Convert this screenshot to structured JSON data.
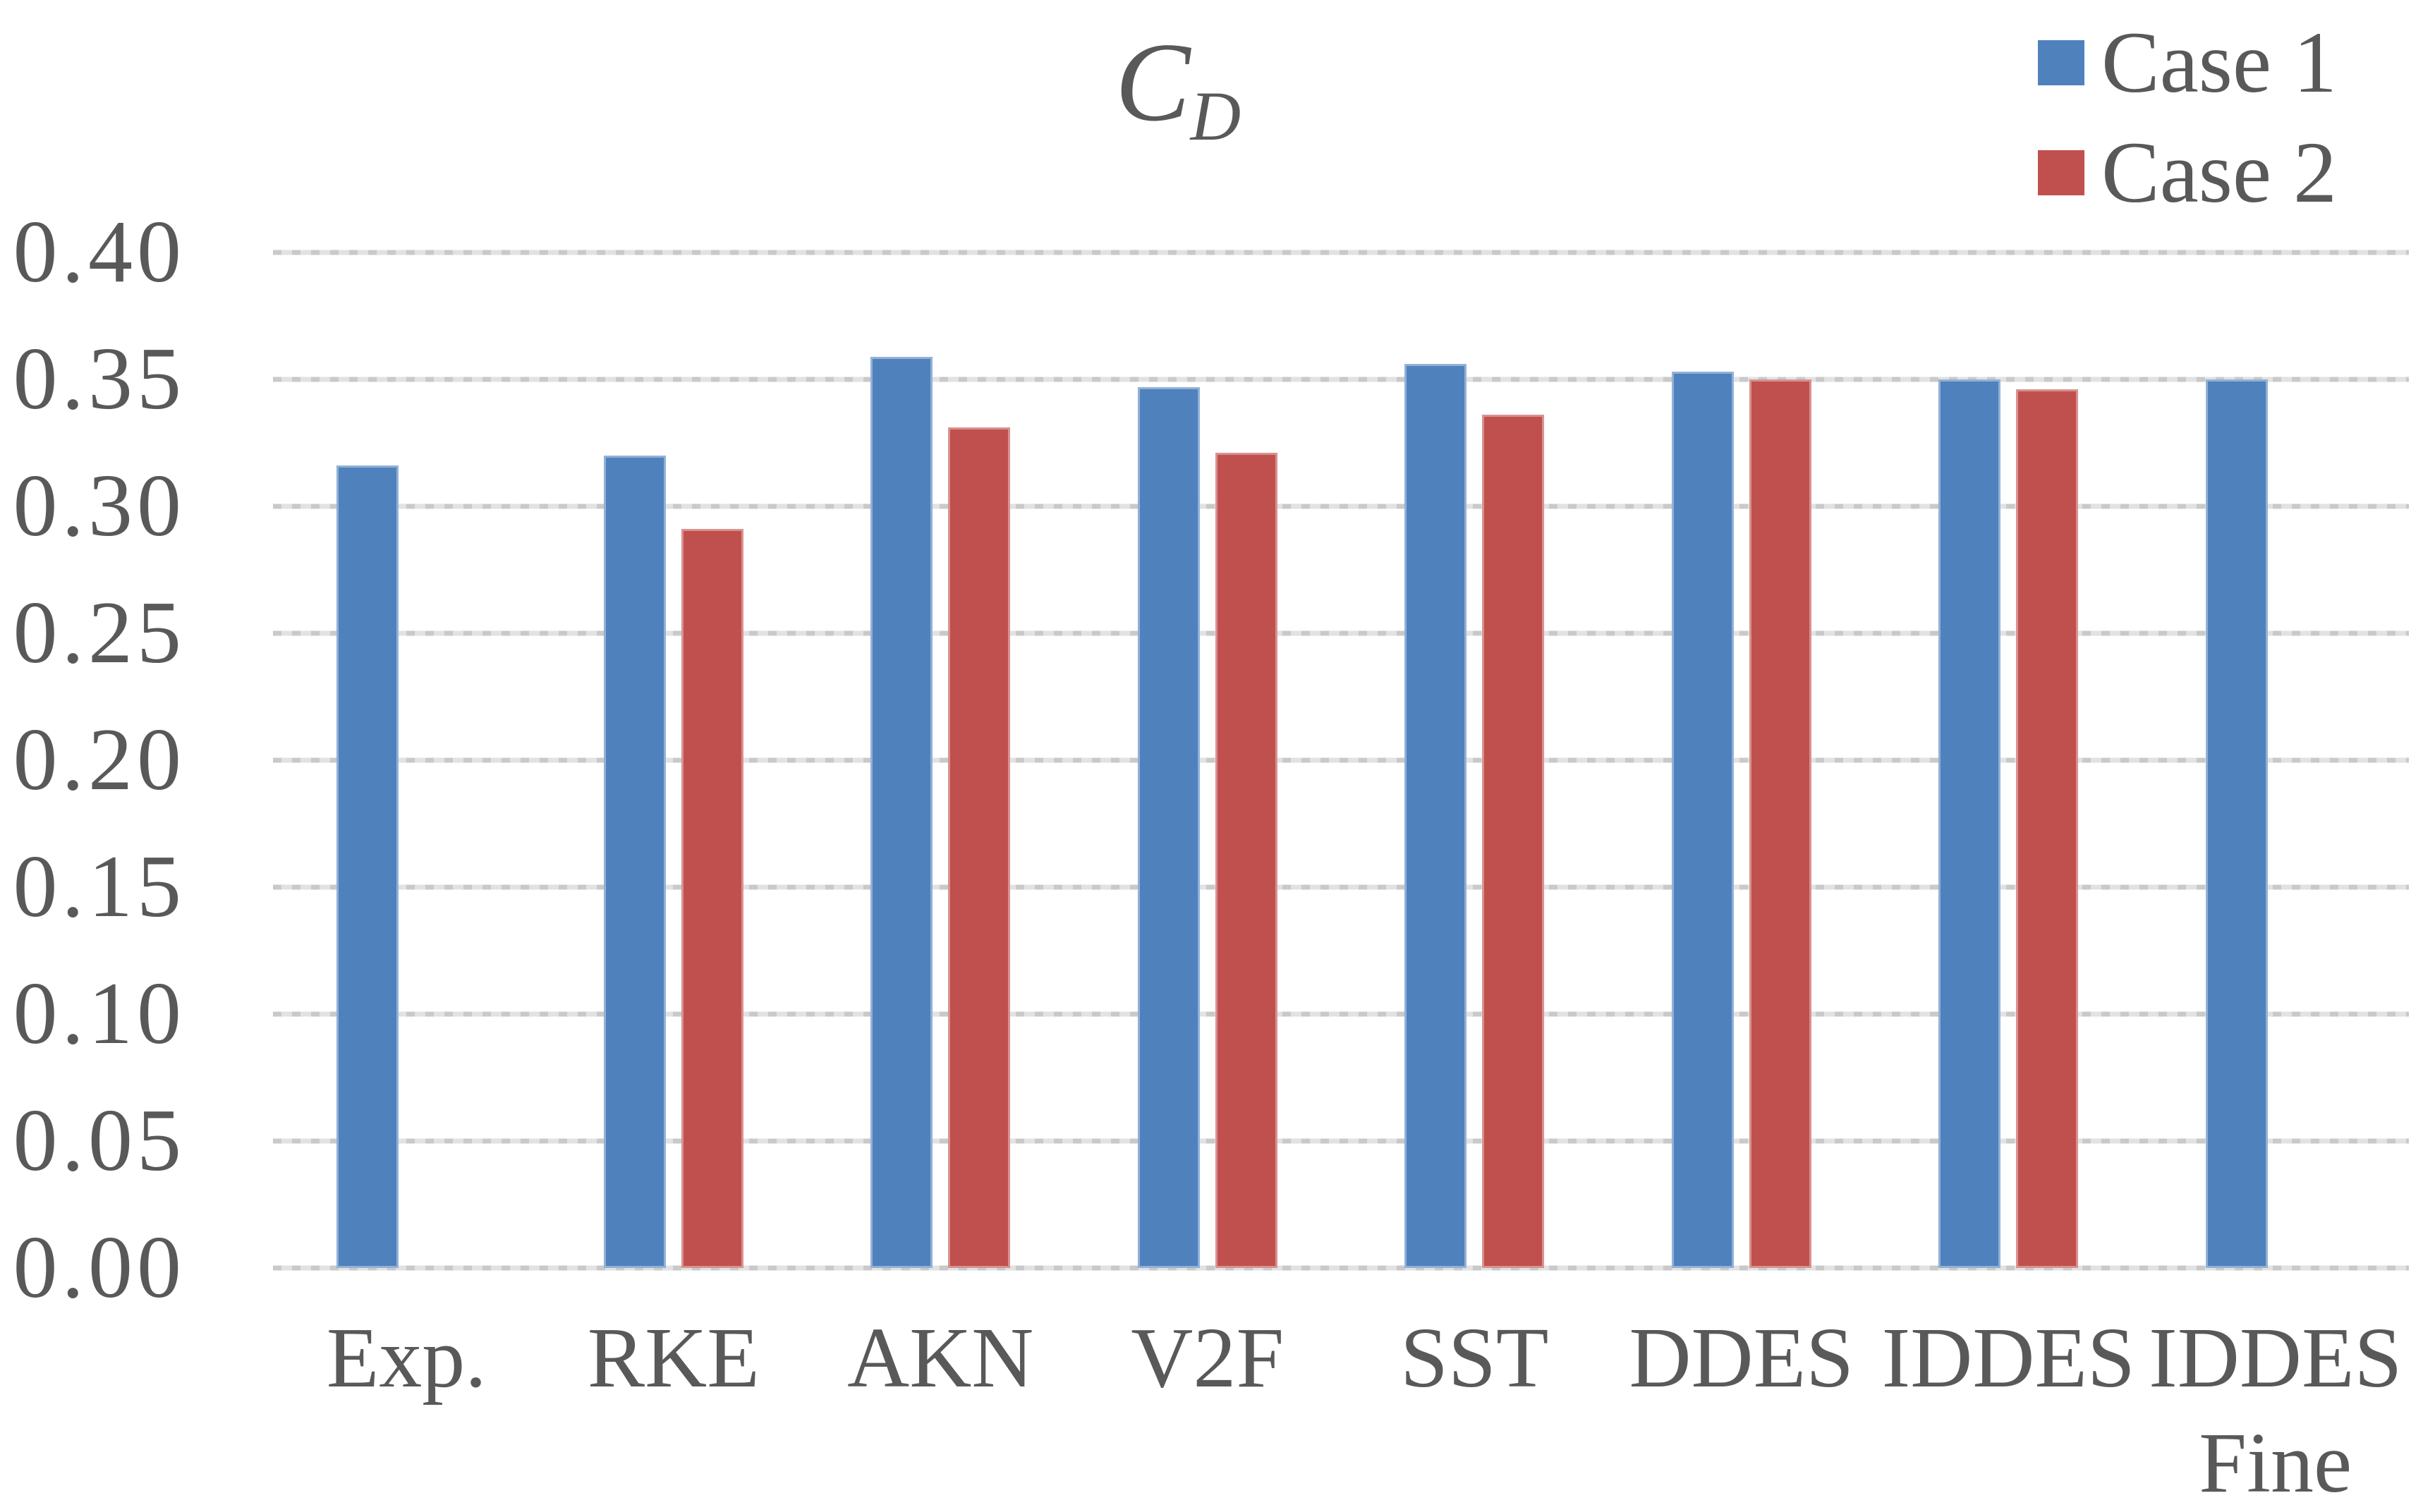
{
  "title": {
    "main": "C",
    "subscript": "D"
  },
  "legend": {
    "items": [
      {
        "label": "Case 1",
        "color": "#4F81BD"
      },
      {
        "label": "Case 2",
        "color": "#C0504D"
      }
    ]
  },
  "colors": {
    "series1": "#4F81BD",
    "series2": "#C0504D",
    "text": "#595959",
    "gridline_light": "#E2E2E2",
    "gridline_dash": "#C9C9C9",
    "background": "#FFFFFF"
  },
  "chart_data": {
    "type": "bar",
    "title": "C_D",
    "categories": [
      "Exp.",
      "RKE",
      "AKN",
      "V2F",
      "SST",
      "DDES",
      "IDDES",
      "IDDES Fine"
    ],
    "category_lines": [
      [
        "Exp."
      ],
      [
        "RKE"
      ],
      [
        "AKN"
      ],
      [
        "V2F"
      ],
      [
        "SST"
      ],
      [
        "DDES"
      ],
      [
        "IDDES"
      ],
      [
        "IDDES",
        "Fine"
      ]
    ],
    "series": [
      {
        "name": "Case 1",
        "color": "#4F81BD",
        "values": [
          0.316,
          0.32,
          0.359,
          0.347,
          0.356,
          0.353,
          0.35,
          0.35
        ]
      },
      {
        "name": "Case 2",
        "color": "#C0504D",
        "values": [
          null,
          0.291,
          0.331,
          0.321,
          0.336,
          0.35,
          0.346,
          null
        ]
      }
    ],
    "xlabel": "",
    "ylabel": "",
    "ylim": [
      0.0,
      0.4
    ],
    "ytick_step": 0.05,
    "ytick_labels": [
      "0.00",
      "0.05",
      "0.10",
      "0.15",
      "0.20",
      "0.25",
      "0.30",
      "0.35",
      "0.40"
    ],
    "grid": true,
    "legend_position": "top-right"
  }
}
